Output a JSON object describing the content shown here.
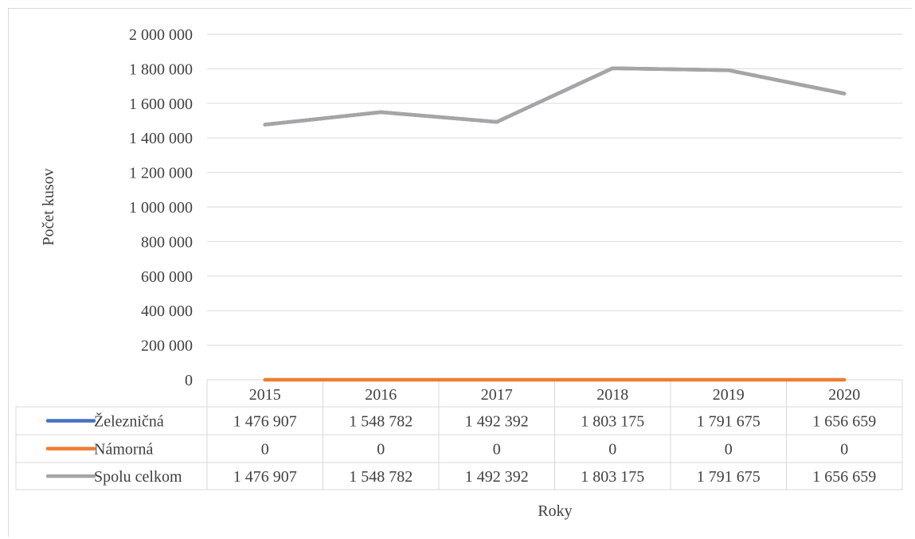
{
  "chart_data": {
    "type": "line",
    "title": "",
    "xlabel": "Roky",
    "ylabel": "Počet kusov",
    "categories": [
      "2015",
      "2016",
      "2017",
      "2018",
      "2019",
      "2020"
    ],
    "ylim": [
      0,
      2000000
    ],
    "yticks": [
      "0",
      "200 000",
      "400 000",
      "600 000",
      "800 000",
      "1 000 000",
      "1 200 000",
      "1 400 000",
      "1 600 000",
      "1 800 000",
      "2 000 000"
    ],
    "grid": true,
    "legend": "data-table",
    "series": [
      {
        "name": "Železničná",
        "color": "#4472c4",
        "values": [
          1476907,
          1548782,
          1492392,
          1803175,
          1791675,
          1656659
        ],
        "labels": [
          "1 476 907",
          "1 548 782",
          "1 492 392",
          "1 803 175",
          "1 791 675",
          "1 656 659"
        ]
      },
      {
        "name": "Námorná",
        "color": "#ed7d31",
        "values": [
          0,
          0,
          0,
          0,
          0,
          0
        ],
        "labels": [
          "0",
          "0",
          "0",
          "0",
          "0",
          "0"
        ]
      },
      {
        "name": "Spolu celkom",
        "color": "#a5a5a5",
        "values": [
          1476907,
          1548782,
          1492392,
          1803175,
          1791675,
          1656659
        ],
        "labels": [
          "1 476 907",
          "1 548 782",
          "1 492 392",
          "1 803 175",
          "1 791 675",
          "1 656 659"
        ]
      }
    ]
  }
}
